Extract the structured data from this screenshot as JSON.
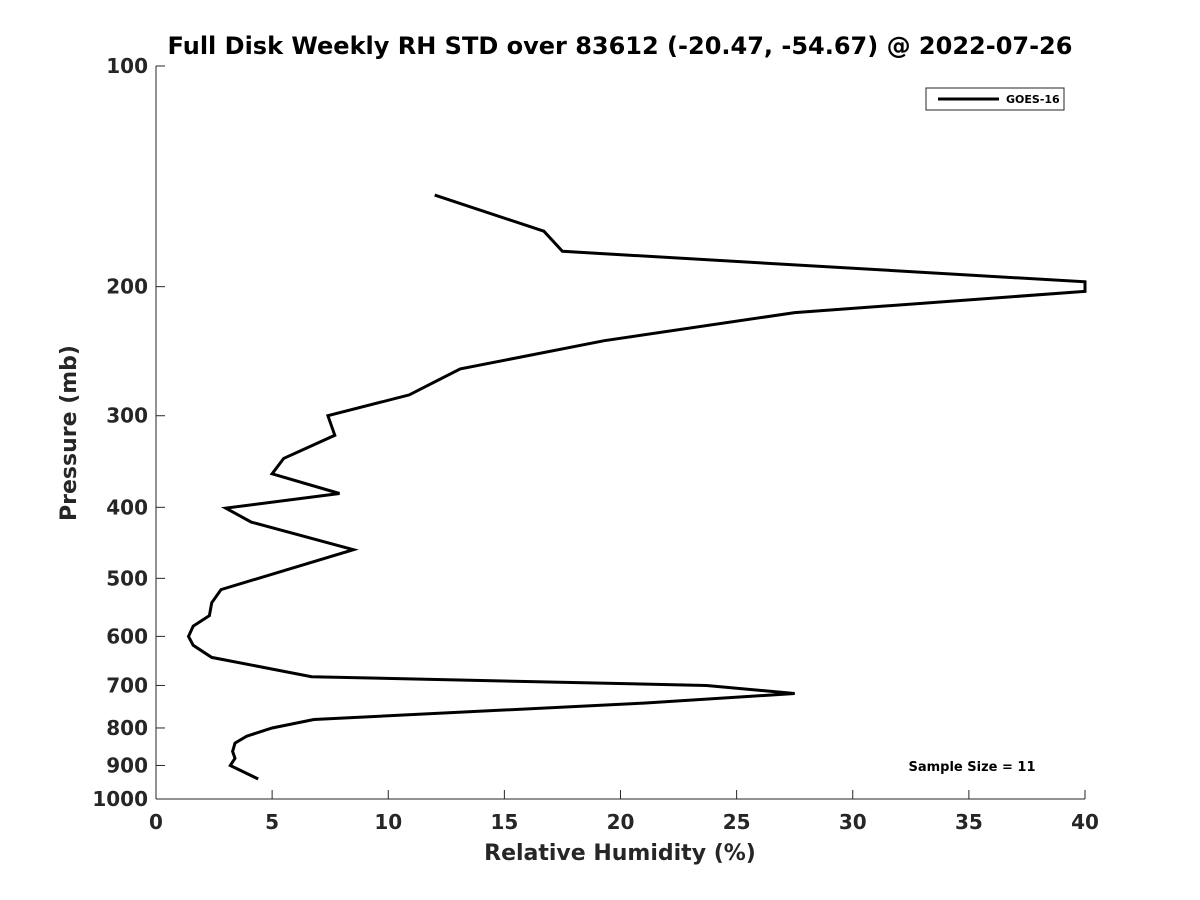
{
  "chart_data": {
    "type": "line",
    "title": "Full Disk Weekly RH STD over 83612 (-20.47, -54.67) @ 2022-07-26",
    "xlabel": "Relative Humidity (%)",
    "ylabel": "Pressure (mb)",
    "xlim": [
      0,
      40
    ],
    "ylim": [
      100,
      1000
    ],
    "yscale": "log",
    "y_reversed": true,
    "grid": false,
    "x_ticks": [
      0,
      5,
      10,
      15,
      20,
      25,
      30,
      35,
      40
    ],
    "y_ticks": [
      100,
      200,
      300,
      400,
      500,
      600,
      700,
      800,
      900,
      1000
    ],
    "legend": {
      "position": "top-right",
      "entries": [
        "GOES-16"
      ]
    },
    "annotation": "Sample Size = 11",
    "series": [
      {
        "name": "GOES-16",
        "color": "#000000",
        "points": [
          {
            "x": 12.0,
            "p": 150
          },
          {
            "x": 16.7,
            "p": 168
          },
          {
            "x": 17.5,
            "p": 179
          },
          {
            "x": 40.0,
            "p": 197
          },
          {
            "x": 40.0,
            "p": 203
          },
          {
            "x": 27.5,
            "p": 217
          },
          {
            "x": 19.3,
            "p": 237
          },
          {
            "x": 13.1,
            "p": 259
          },
          {
            "x": 10.9,
            "p": 281
          },
          {
            "x": 7.4,
            "p": 300
          },
          {
            "x": 7.7,
            "p": 319
          },
          {
            "x": 5.5,
            "p": 343
          },
          {
            "x": 5.0,
            "p": 360
          },
          {
            "x": 7.9,
            "p": 383
          },
          {
            "x": 3.0,
            "p": 401
          },
          {
            "x": 4.1,
            "p": 419
          },
          {
            "x": 8.5,
            "p": 457
          },
          {
            "x": 2.8,
            "p": 518
          },
          {
            "x": 2.4,
            "p": 540
          },
          {
            "x": 2.3,
            "p": 562
          },
          {
            "x": 1.6,
            "p": 581
          },
          {
            "x": 1.4,
            "p": 600
          },
          {
            "x": 1.6,
            "p": 617
          },
          {
            "x": 2.4,
            "p": 641
          },
          {
            "x": 6.7,
            "p": 681
          },
          {
            "x": 23.7,
            "p": 700
          },
          {
            "x": 27.5,
            "p": 718
          },
          {
            "x": 21.0,
            "p": 740
          },
          {
            "x": 6.8,
            "p": 779
          },
          {
            "x": 5.0,
            "p": 800
          },
          {
            "x": 3.9,
            "p": 821
          },
          {
            "x": 3.4,
            "p": 839
          },
          {
            "x": 3.3,
            "p": 861
          },
          {
            "x": 3.4,
            "p": 880
          },
          {
            "x": 3.2,
            "p": 900
          },
          {
            "x": 4.4,
            "p": 939
          }
        ]
      }
    ]
  }
}
